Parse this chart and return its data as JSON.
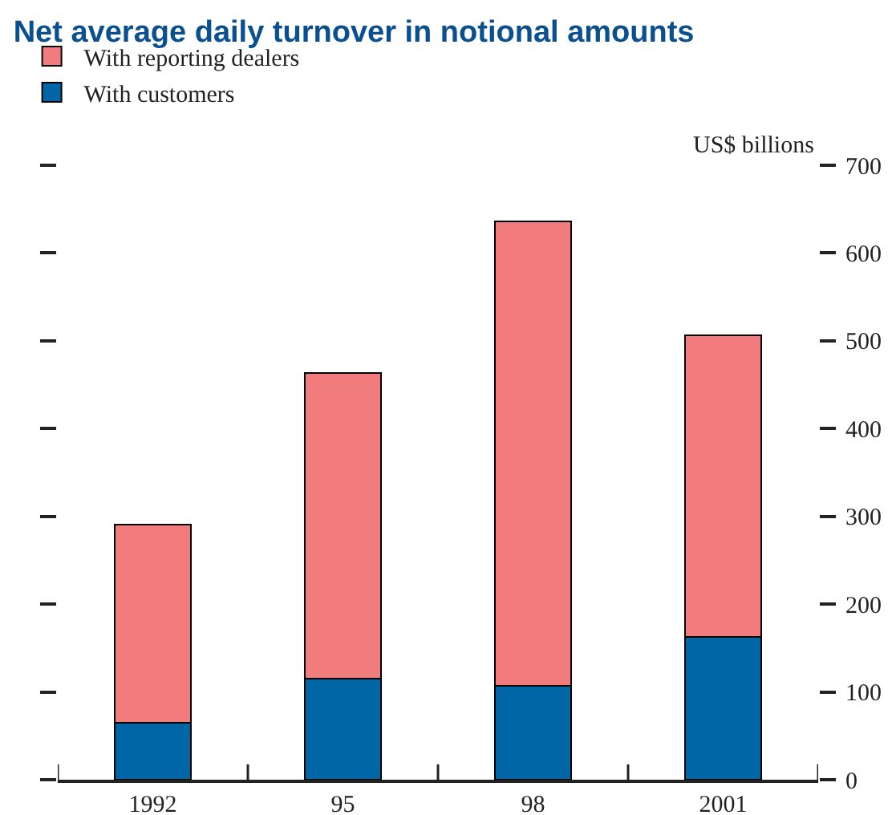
{
  "chart_data": {
    "type": "bar",
    "title": "Net average daily turnover in notional amounts",
    "ylabel": "US$ billions",
    "categories": [
      "1992",
      "95",
      "98",
      "2001"
    ],
    "series": [
      {
        "name": "With customers",
        "color": "#0066a6",
        "values": [
          65,
          115,
          107,
          163
        ]
      },
      {
        "name": "With reporting dealers",
        "color": "#f27b7e",
        "values": [
          226,
          348,
          529,
          343
        ]
      }
    ],
    "stacked": true,
    "ylim": [
      0,
      700
    ],
    "yticks": [
      0,
      100,
      200,
      300,
      400,
      500,
      600,
      700
    ],
    "grid": false,
    "legend": "top left"
  }
}
